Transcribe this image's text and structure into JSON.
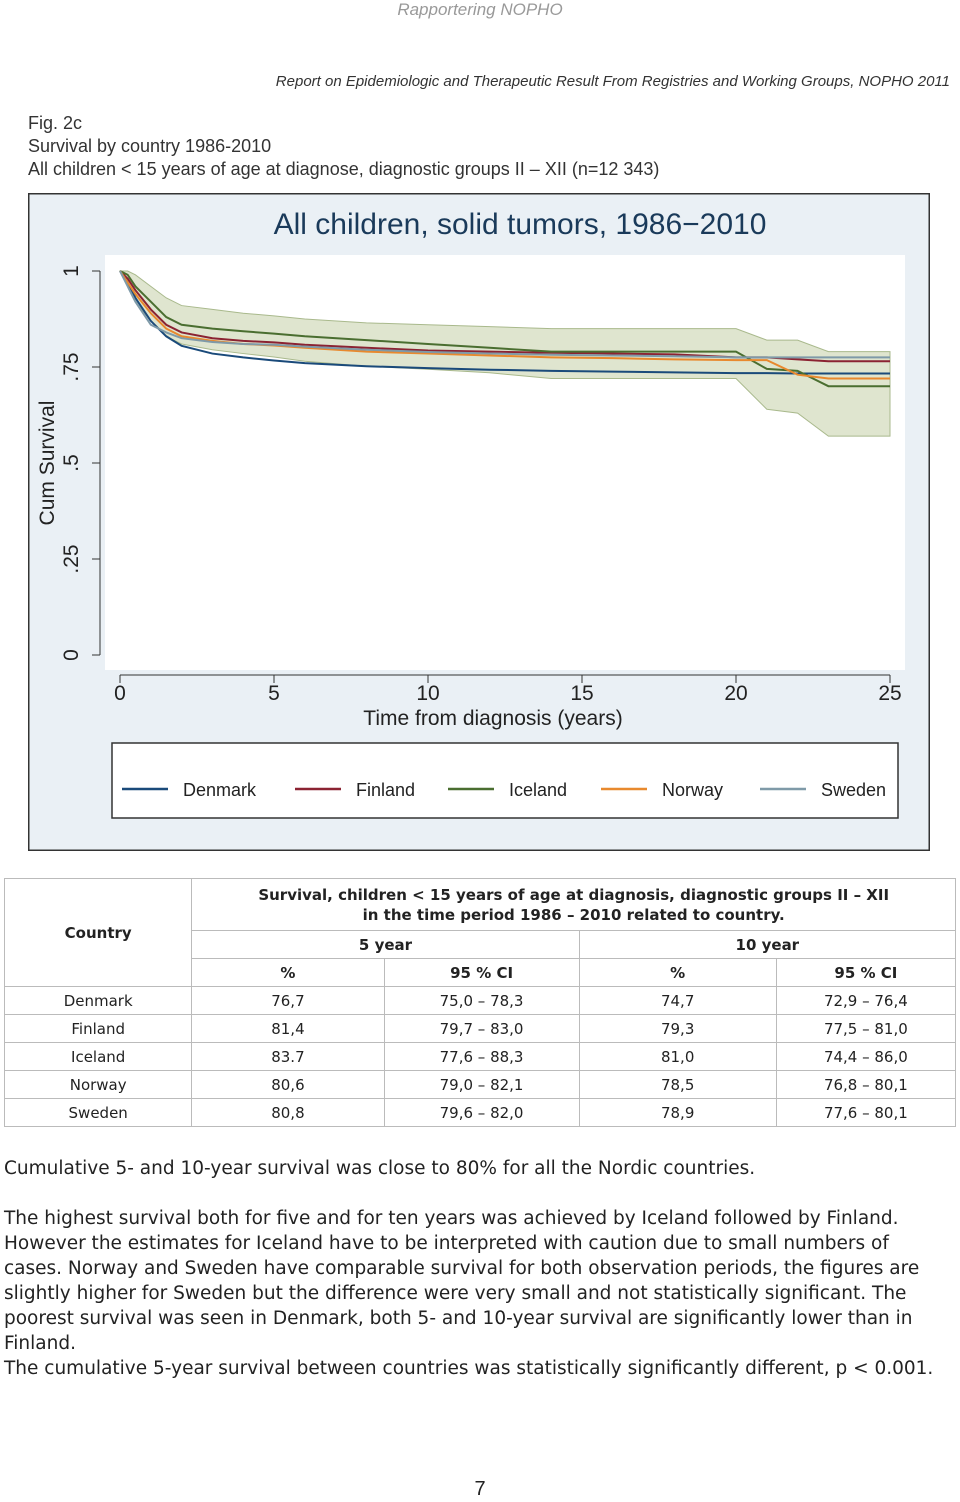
{
  "header": {
    "running_title": "Rapportering NOPHO",
    "report_title": "Report on Epidemiologic and Therapeutic Result From Registries and Working Groups, NOPHO 2011"
  },
  "figure_caption": [
    "Fig. 2c",
    "Survival by country 1986-2010",
    "All children < 15 years of age at diagnose, diagnostic groups II – XII (n=12 343)"
  ],
  "chart_data": {
    "type": "line",
    "step": true,
    "title": "All children, solid tumors, 1986−2010",
    "x_label": "Time from diagnosis (years)",
    "y_label": "Cum Survival",
    "xlim": [
      0,
      25
    ],
    "xticks": [
      0,
      5,
      10,
      15,
      20,
      25
    ],
    "ylim": [
      0,
      1
    ],
    "yticks": [
      0,
      {
        "value": 0.25,
        "label": ".25"
      },
      {
        "value": 0.5,
        "label": ".5"
      },
      {
        "value": 0.75,
        "label": ".75"
      },
      1
    ],
    "grid": false,
    "legend": "bottom",
    "x": [
      0,
      0.25,
      0.5,
      1,
      1.5,
      2,
      3,
      4,
      5,
      6,
      8,
      10,
      12,
      14,
      16,
      18,
      20,
      21,
      22,
      23,
      24,
      25
    ],
    "series": [
      {
        "name": "Denmark",
        "color": "#1a4a7a",
        "values": [
          1,
          0.97,
          0.93,
          0.87,
          0.83,
          0.805,
          0.785,
          0.775,
          0.767,
          0.76,
          0.752,
          0.747,
          0.743,
          0.74,
          0.738,
          0.736,
          0.734,
          0.734,
          0.733,
          0.733,
          0.733,
          0.733
        ]
      },
      {
        "name": "Finland",
        "color": "#8b2332",
        "values": [
          1,
          0.98,
          0.95,
          0.9,
          0.86,
          0.84,
          0.825,
          0.818,
          0.814,
          0.808,
          0.8,
          0.793,
          0.79,
          0.787,
          0.785,
          0.783,
          0.775,
          0.775,
          0.77,
          0.765,
          0.765,
          0.765
        ]
      },
      {
        "name": "Iceland",
        "color": "#4a6e30",
        "values": [
          1,
          0.99,
          0.96,
          0.92,
          0.88,
          0.86,
          0.85,
          0.843,
          0.837,
          0.83,
          0.82,
          0.81,
          0.8,
          0.79,
          0.79,
          0.79,
          0.79,
          0.745,
          0.74,
          0.7,
          0.7,
          0.7
        ],
        "ci_upper": [
          1,
          1,
          0.99,
          0.96,
          0.93,
          0.91,
          0.9,
          0.89,
          0.883,
          0.875,
          0.865,
          0.86,
          0.855,
          0.85,
          0.85,
          0.85,
          0.85,
          0.82,
          0.82,
          0.79,
          0.79,
          0.79
        ],
        "ci_lower": [
          1,
          0.97,
          0.92,
          0.87,
          0.83,
          0.81,
          0.795,
          0.785,
          0.776,
          0.765,
          0.752,
          0.744,
          0.735,
          0.72,
          0.72,
          0.72,
          0.72,
          0.64,
          0.63,
          0.57,
          0.57,
          0.57
        ],
        "ci_color": "#dfe5cf"
      },
      {
        "name": "Norway",
        "color": "#e8892e",
        "values": [
          1,
          0.97,
          0.94,
          0.89,
          0.85,
          0.83,
          0.818,
          0.81,
          0.806,
          0.8,
          0.79,
          0.785,
          0.78,
          0.775,
          0.773,
          0.77,
          0.768,
          0.768,
          0.73,
          0.72,
          0.72,
          0.72
        ]
      },
      {
        "name": "Sweden",
        "color": "#7f9aa8",
        "values": [
          1,
          0.96,
          0.92,
          0.86,
          0.84,
          0.825,
          0.815,
          0.81,
          0.808,
          0.803,
          0.795,
          0.789,
          0.785,
          0.782,
          0.78,
          0.778,
          0.775,
          0.775,
          0.775,
          0.775,
          0.775,
          0.775
        ]
      }
    ]
  },
  "table": {
    "country_header": "Country",
    "title_lines": [
      "Survival, children < 15 years of age at diagnosis, diagnostic groups II – XII",
      "in the time period 1986 – 2010 related to country."
    ],
    "periods": [
      "5 year",
      "10 year"
    ],
    "columns": [
      "%",
      "95 % CI",
      "%",
      "95 % CI"
    ],
    "rows": [
      [
        "Denmark",
        "76,7",
        "75,0 – 78,3",
        "74,7",
        "72,9 – 76,4"
      ],
      [
        "Finland",
        "81,4",
        "79,7 – 83,0",
        "79,3",
        "77,5 – 81,0"
      ],
      [
        "Iceland",
        "83.7",
        "77,6 – 88,3",
        "81,0",
        "74,4 – 86,0"
      ],
      [
        "Norway",
        "80,6",
        "79,0 – 82,1",
        "78,5",
        "76,8 – 80,1"
      ],
      [
        "Sweden",
        "80,8",
        "79,6 – 82,0",
        "78,9",
        "77,6 – 80,1"
      ]
    ]
  },
  "paragraphs": [
    "Cumulative 5- and 10-year survival was close to 80% for all the Nordic countries.",
    "The highest survival both for five and for ten years was achieved by Iceland followed by Finland. However the estimates for Iceland have to be interpreted with caution due to small numbers of cases. Norway and Sweden have comparable survival for both observation periods, the figures are slightly higher for Sweden but the difference were very small and not statistically significant. The poorest survival was seen in Denmark, both 5- and 10-year survival are significantly lower than in Finland.",
    "The cumulative 5-year survival between countries was statistically significantly different, p < 0.001."
  ],
  "page_number": "7"
}
